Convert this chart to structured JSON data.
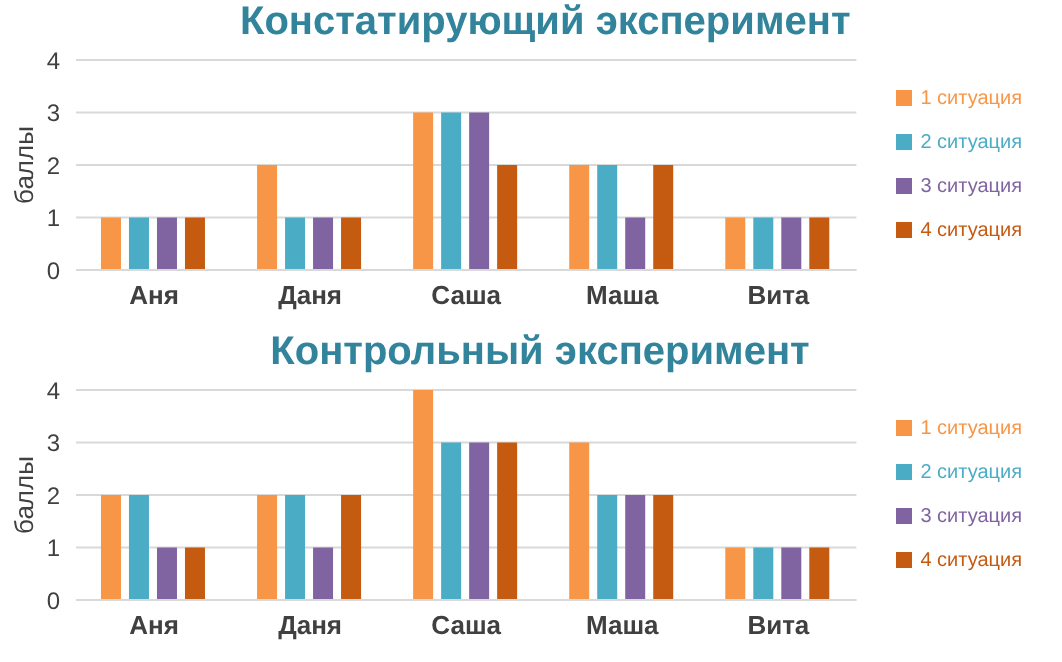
{
  "chart_data": [
    {
      "type": "bar",
      "title": "Констатирующий эксперимент",
      "ylabel": "баллы",
      "categories": [
        "Аня",
        "Даня",
        "Саша",
        "Маша",
        "Вита"
      ],
      "series": [
        {
          "name": "1 ситуация",
          "color": "#f79646",
          "values": [
            1,
            2,
            3,
            2,
            1
          ]
        },
        {
          "name": "2 ситуация",
          "color": "#4bacc6",
          "values": [
            1,
            1,
            3,
            2,
            1
          ]
        },
        {
          "name": "3 ситуация",
          "color": "#8064a2",
          "values": [
            1,
            1,
            3,
            1,
            1
          ]
        },
        {
          "name": "4 ситуация",
          "color": "#c55a11",
          "values": [
            1,
            1,
            2,
            2,
            1
          ]
        }
      ],
      "ylim": [
        0,
        4
      ],
      "yticks": [
        0,
        1,
        2,
        3,
        4
      ],
      "grid": "y",
      "legend": "right"
    },
    {
      "type": "bar",
      "title": "Контрольный эксперимент",
      "ylabel": "баллы",
      "categories": [
        "Аня",
        "Даня",
        "Саша",
        "Маша",
        "Вита"
      ],
      "series": [
        {
          "name": "1 ситуация",
          "color": "#f79646",
          "values": [
            2,
            2,
            4,
            3,
            1
          ]
        },
        {
          "name": "2 ситуация",
          "color": "#4bacc6",
          "values": [
            2,
            2,
            3,
            2,
            1
          ]
        },
        {
          "name": "3 ситуация",
          "color": "#8064a2",
          "values": [
            1,
            1,
            3,
            2,
            1
          ]
        },
        {
          "name": "4 ситуация",
          "color": "#c55a11",
          "values": [
            1,
            2,
            3,
            2,
            1
          ]
        }
      ],
      "ylim": [
        0,
        4
      ],
      "yticks": [
        0,
        1,
        2,
        3,
        4
      ],
      "grid": "y",
      "legend": "right"
    }
  ]
}
